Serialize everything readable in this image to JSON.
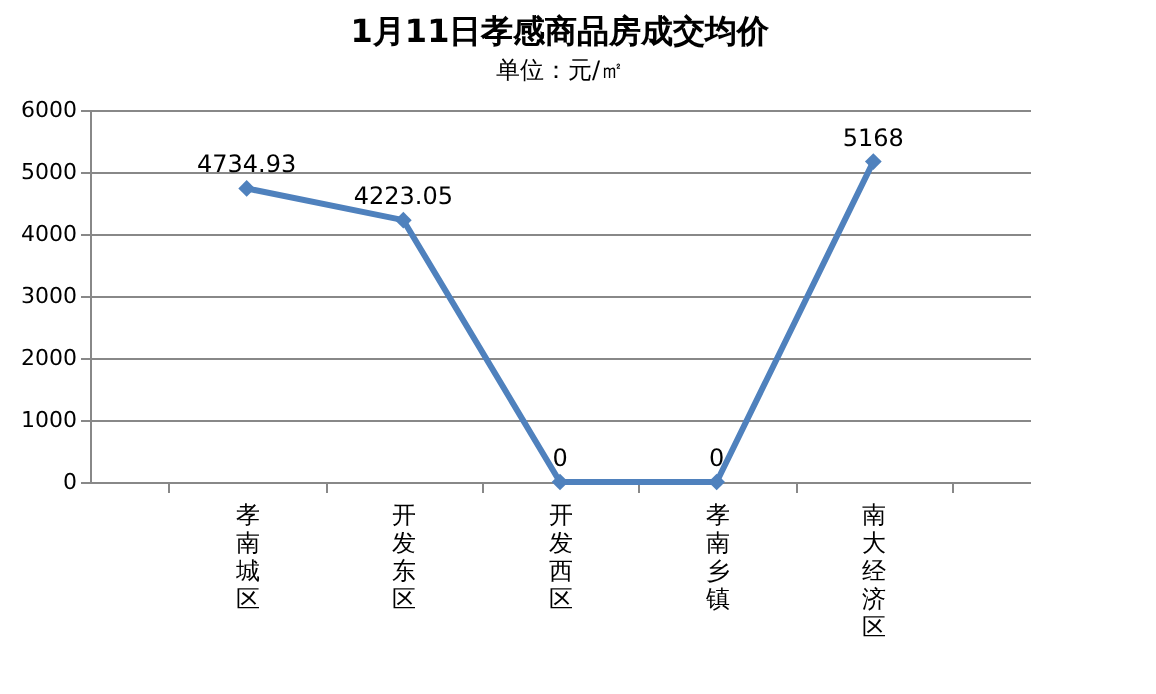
{
  "chart_data": {
    "type": "line",
    "title": "1月11日孝感商品房成交均价",
    "annotations": [
      "单位：元/㎡"
    ],
    "categories": [
      "孝南城区",
      "开发东区",
      "开发西区",
      "孝南乡镇",
      "南大经济区"
    ],
    "series": [
      {
        "color": "#4f81bd",
        "values": [
          4734.93,
          4223.05,
          0,
          0,
          5168
        ]
      }
    ],
    "ylim": [
      0,
      6000
    ],
    "yticks": [
      0,
      1000,
      2000,
      3000,
      4000,
      5000,
      6000
    ],
    "grid": "y",
    "marker": "diamond",
    "line_style": "solid",
    "data_labels": true,
    "legend": false
  }
}
